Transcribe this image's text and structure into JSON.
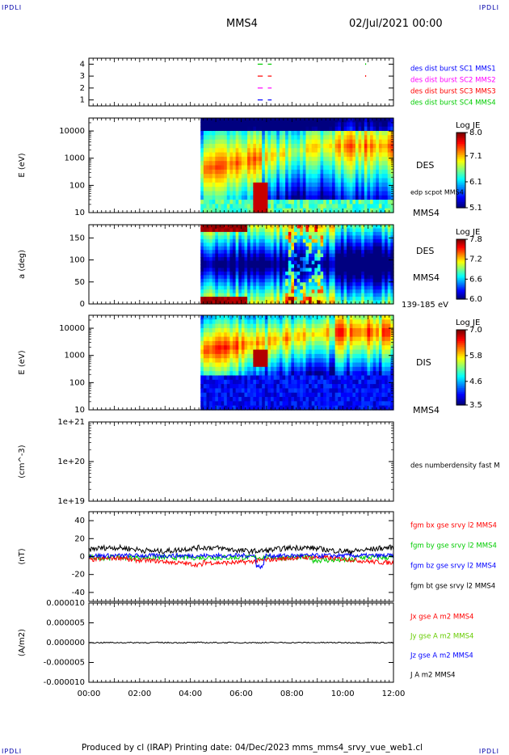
{
  "header": {
    "corner_left": "IPDLI",
    "corner_right": "IPDLI",
    "spacecraft": "MMS4",
    "date": "02/Jul/2021 00:00"
  },
  "footer": {
    "text": "Produced by cl (IRAP)   Printing date: 04/Dec/2023   mms_mms4_srvy_vue_web1.cl",
    "corner_left": "IPDLI",
    "corner_right": "IPDLI"
  },
  "colors": {
    "mms1": "#0000ff",
    "mms2": "#ff00ff",
    "mms3": "#ff0000",
    "mms4": "#00cc00",
    "bt": "#000000"
  },
  "chart_data": [
    {
      "type": "scatter",
      "id": "burst",
      "ylabel": "",
      "ylim": [
        0.5,
        4.5
      ],
      "yticks": [
        "1",
        "2",
        "3",
        "4"
      ],
      "legend": [
        {
          "name": "des dist burst SC1 MMS1",
          "color": "#0000ff",
          "sc": 1
        },
        {
          "name": "des dist burst SC2 MMS2",
          "color": "#ff00ff",
          "sc": 2
        },
        {
          "name": "des dist burst SC3 MMS3",
          "color": "#ff0000",
          "sc": 3
        },
        {
          "name": "des dist burst SC4 MMS4",
          "color": "#00cc00",
          "sc": 4
        }
      ],
      "intervals_hours": [
        [
          6.65,
          6.85
        ],
        [
          7.05,
          7.2
        ]
      ],
      "dots_hours": [
        10.9
      ]
    },
    {
      "type": "heatmap",
      "id": "des-energy",
      "ylabel": "E (eV)",
      "yscale": "log",
      "ylim": [
        10,
        30000
      ],
      "yticks": [
        "10",
        "100",
        "1000",
        "10000"
      ],
      "label": "DES",
      "sublabel": "MMS4",
      "overlay": "edp scpot MMS4",
      "colorbar": {
        "title": "Log JE",
        "ticks": [
          "8.0",
          "7.1",
          "6.1",
          "5.1"
        ],
        "range": [
          5.1,
          8.0
        ]
      },
      "data_start_hour": 4.4
    },
    {
      "type": "heatmap",
      "id": "des-pitch",
      "ylabel": "a (deg)",
      "ylim": [
        0,
        180
      ],
      "yticks": [
        "0",
        "50",
        "100",
        "150"
      ],
      "label": "DES",
      "sublabel": "MMS4",
      "energy_range": "139-185 eV",
      "colorbar": {
        "title": "Log JE",
        "ticks": [
          "7.8",
          "7.2",
          "6.6",
          "6.0"
        ],
        "range": [
          6.0,
          7.8
        ]
      },
      "data_start_hour": 4.4
    },
    {
      "type": "heatmap",
      "id": "dis-energy",
      "ylabel": "E (eV)",
      "yscale": "log",
      "ylim": [
        10,
        30000
      ],
      "yticks": [
        "10",
        "100",
        "1000",
        "10000"
      ],
      "label": "DIS",
      "sublabel": "MMS4",
      "colorbar": {
        "title": "Log JE",
        "ticks": [
          "7.0",
          "5.8",
          "4.6",
          "3.5"
        ],
        "range": [
          3.5,
          7.0
        ]
      },
      "data_start_hour": 4.4
    },
    {
      "type": "line",
      "id": "density",
      "ylabel": "(cm^-3)",
      "yscale": "log",
      "ylim": [
        1e+19,
        1e+21
      ],
      "yticks": [
        "1e+19",
        "1e+20",
        "1e+21"
      ],
      "legend": [
        {
          "name": "des numberdensity fast M",
          "color": "#000000"
        }
      ]
    },
    {
      "type": "line",
      "id": "fgm",
      "ylabel": "(nT)",
      "ylim": [
        -50,
        50
      ],
      "yticks": [
        "-40",
        "-20",
        "0",
        "20",
        "40"
      ],
      "series": [
        {
          "name": "fgm bx gse srvy l2 MMS4",
          "color": "#ff0000",
          "mean": -4
        },
        {
          "name": "fgm by gse srvy l2 MMS4",
          "color": "#00cc00",
          "mean": -1
        },
        {
          "name": "fgm bz gse srvy l2 MMS4",
          "color": "#0000ff",
          "mean": 1
        },
        {
          "name": "fgm bt gse srvy l2 MMS4",
          "color": "#000000",
          "mean": 8
        }
      ]
    },
    {
      "type": "line",
      "id": "current",
      "ylabel": "(A/m2)",
      "ylim": [
        -1e-05,
        1e-05
      ],
      "yticks": [
        "-0.000010",
        "-0.000005",
        "0.000000",
        "0.000005",
        "0.000010"
      ],
      "series": [
        {
          "name": "Jx gse A m2 MMS4",
          "color": "#ff0000"
        },
        {
          "name": "Jy gse A m2 MMS4",
          "color": "#66cc00"
        },
        {
          "name": "Jz gse A m2 MMS4",
          "color": "#0000ff"
        },
        {
          "name": "J A m2 MMS4",
          "color": "#000000"
        }
      ]
    }
  ],
  "xaxis": {
    "ticks": [
      "00:00",
      "02:00",
      "04:00",
      "06:00",
      "08:00",
      "10:00",
      "12:00"
    ],
    "range_hours": [
      0,
      12
    ]
  }
}
